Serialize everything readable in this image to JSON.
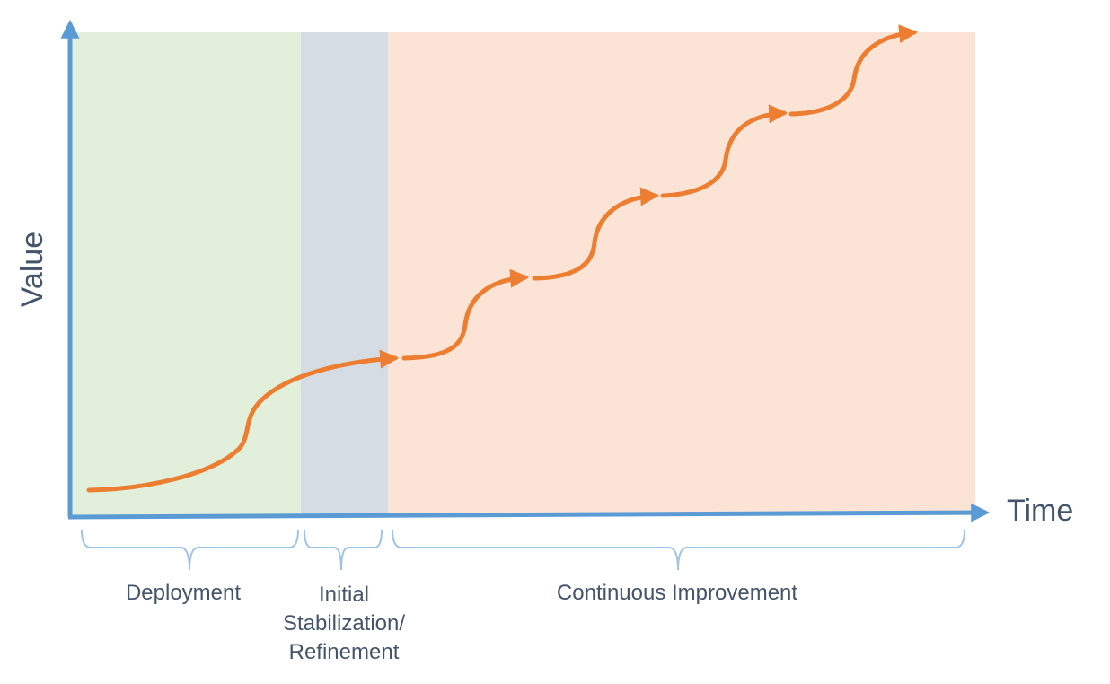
{
  "axes": {
    "y_title": "Value",
    "x_title": "Time"
  },
  "phases": [
    {
      "label": "Deployment",
      "color": "#e2efda"
    },
    {
      "label_lines": [
        "Initial",
        "Stabilization/",
        "Refinement"
      ],
      "color": "#d6dce4"
    },
    {
      "label": "Continuous Improvement",
      "color": "#fbe4d6"
    }
  ],
  "colors": {
    "axis": "#5b9bd5",
    "curve": "#ed7d31",
    "brace": "#9dc3e6",
    "text": "#44546a"
  }
}
